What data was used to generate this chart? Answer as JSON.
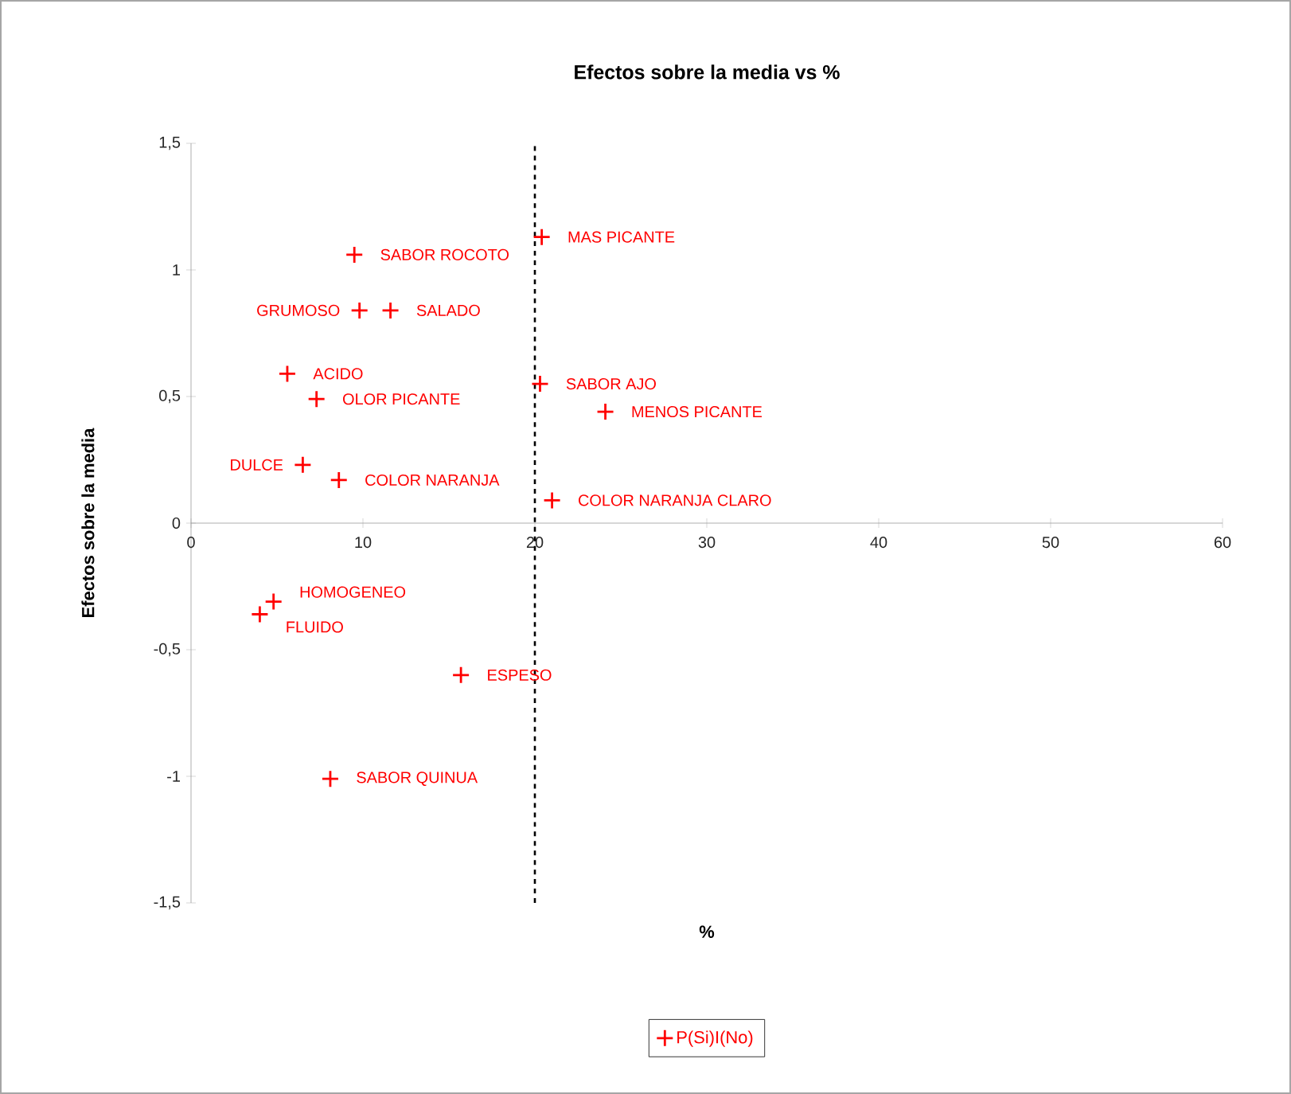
{
  "chart_data": {
    "type": "scatter",
    "title": "Efectos sobre la media vs %",
    "xlabel": "%",
    "ylabel": "Efectos sobre la media",
    "xlim": [
      0,
      60
    ],
    "xticks": [
      0,
      10,
      20,
      30,
      40,
      50,
      60
    ],
    "ylim": [
      -1.5,
      1.5
    ],
    "yticks": [
      {
        "value": -1.5,
        "label": "-1,5"
      },
      -1,
      {
        "value": -0.5,
        "label": "-0,5"
      },
      0,
      {
        "value": 0.5,
        "label": "0,5"
      },
      1,
      {
        "value": 1.5,
        "label": "1,5"
      }
    ],
    "marker": "cross",
    "legend": "bottom",
    "grid": false,
    "ref_lines": [
      {
        "axis": "x",
        "value": 20,
        "color": "#000000",
        "line_style": "dashed"
      }
    ],
    "series": [
      {
        "name": "P(Si)I(No)",
        "color": "#ff0000",
        "x": [
          20.4,
          9.5,
          9.8,
          11.6,
          5.6,
          7.3,
          6.5,
          8.6,
          21.0,
          20.3,
          24.1,
          4.8,
          4.0,
          15.7,
          8.1
        ],
        "values": [
          1.13,
          1.06,
          0.84,
          0.84,
          0.59,
          0.49,
          0.23,
          0.17,
          0.09,
          0.55,
          0.44,
          -0.31,
          -0.36,
          -0.6,
          -1.01
        ]
      }
    ],
    "annotations": [
      {
        "text": "MAS PICANTE",
        "x": 20.4,
        "y": 1.13
      },
      {
        "text": "SABOR ROCOTO",
        "x": 9.5,
        "y": 1.06
      },
      {
        "text": "GRUMOSO",
        "x": 9.8,
        "y": 0.84
      },
      {
        "text": "SALADO",
        "x": 11.6,
        "y": 0.84
      },
      {
        "text": "ACIDO",
        "x": 5.6,
        "y": 0.59
      },
      {
        "text": "OLOR PICANTE",
        "x": 7.3,
        "y": 0.49
      },
      {
        "text": "DULCE",
        "x": 6.5,
        "y": 0.23
      },
      {
        "text": "COLOR NARANJA",
        "x": 8.6,
        "y": 0.17
      },
      {
        "text": "COLOR NARANJA CLARO",
        "x": 21.0,
        "y": 0.09
      },
      {
        "text": "SABOR AJO",
        "x": 20.3,
        "y": 0.55
      },
      {
        "text": "MENOS PICANTE",
        "x": 24.1,
        "y": 0.44
      },
      {
        "text": "HOMOGENEO",
        "x": 4.8,
        "y": -0.31
      },
      {
        "text": "FLUIDO",
        "x": 4.0,
        "y": -0.36
      },
      {
        "text": "ESPESO",
        "x": 15.7,
        "y": -0.6
      },
      {
        "text": "SABOR QUINUA",
        "x": 8.1,
        "y": -1.01
      }
    ]
  }
}
